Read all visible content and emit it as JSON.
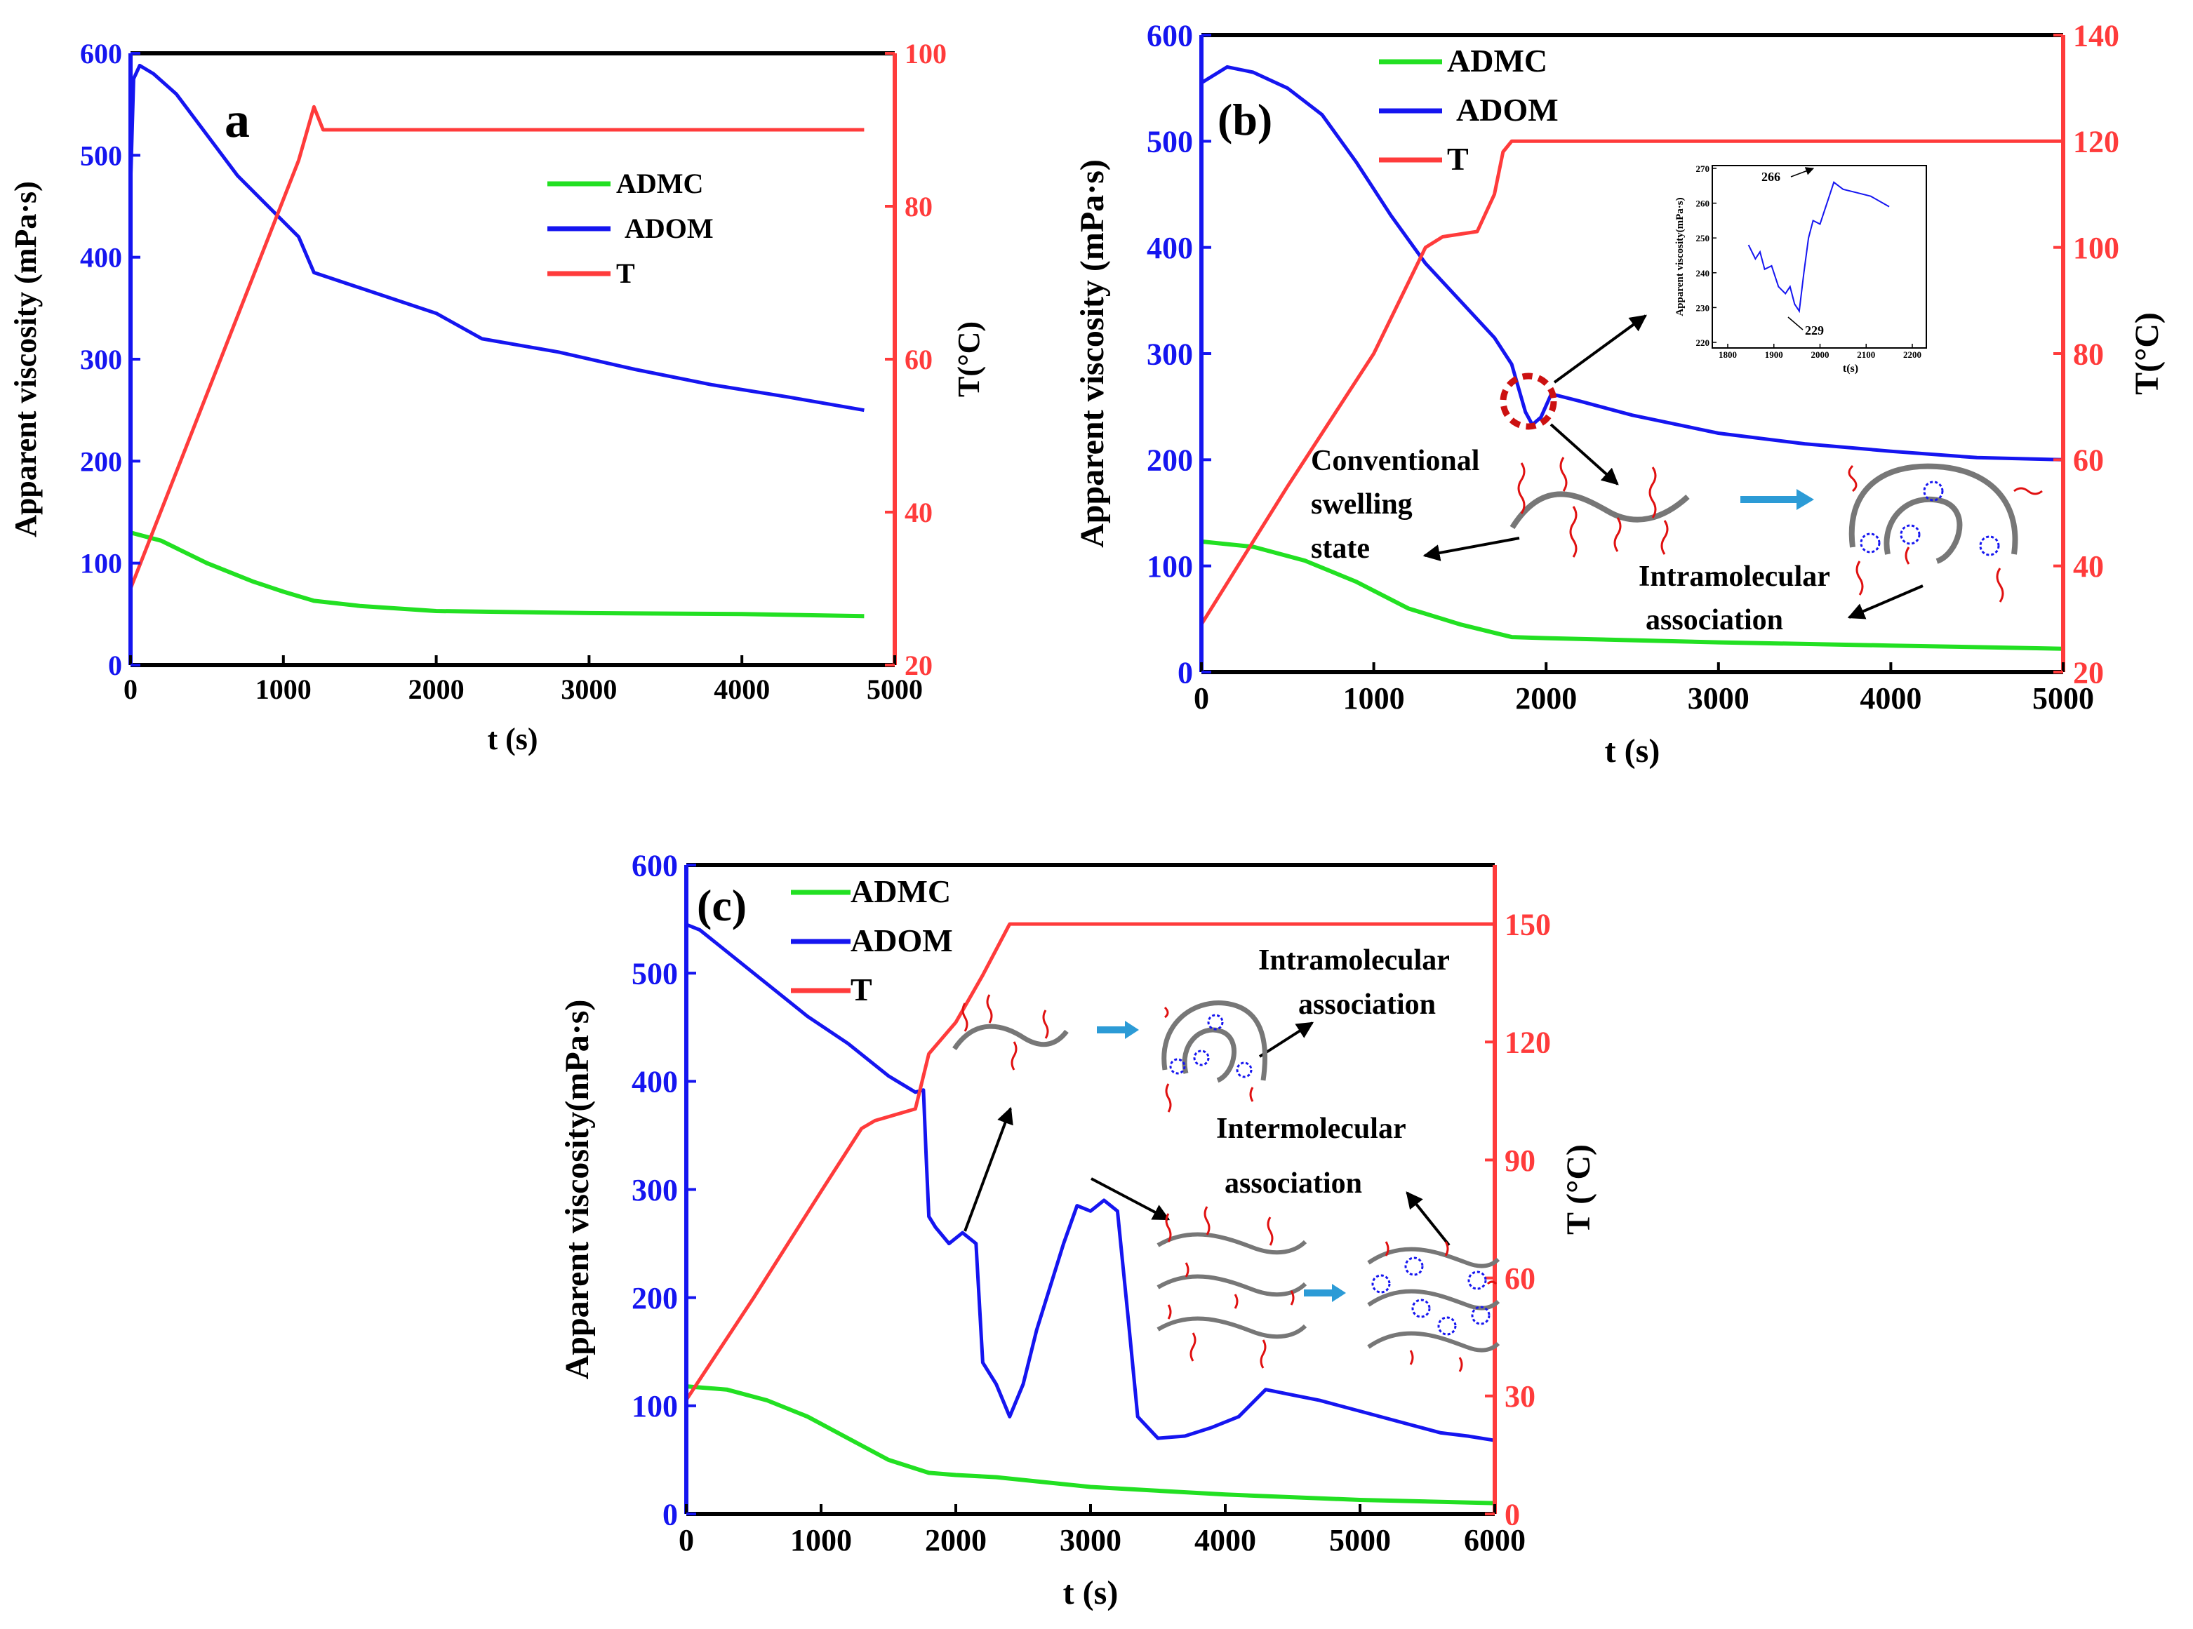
{
  "colors": {
    "admc": "#22e022",
    "adom": "#1515f0",
    "temp": "#ff3b3b",
    "axis": "#000000",
    "annot_ring": "#cc1111",
    "arrow_blue": "#2c9bd6",
    "chain": "#777777",
    "tail": "#e01010"
  },
  "chart_data": [
    {
      "id": "a",
      "type": "line",
      "panel_label": "a",
      "xlabel": "t  (s)",
      "ylabel": "Apparent viscosity (mPa·s)",
      "y2label": "T(°C)",
      "xlim": [
        0,
        5000
      ],
      "ylim": [
        0,
        600
      ],
      "y2lim": [
        20,
        100
      ],
      "xticks": [
        "0",
        "1000",
        "2000",
        "3000",
        "4000",
        "5000"
      ],
      "yticks": [
        "0",
        "100",
        "200",
        "300",
        "400",
        "500",
        "600"
      ],
      "y2ticks": [
        "20",
        "40",
        "60",
        "80",
        "100"
      ],
      "legend": [
        "ADMC",
        "ADOM",
        "T"
      ],
      "legend_position": "top-right",
      "series": [
        {
          "name": "ADMC",
          "axis": "left",
          "points": [
            [
              0,
              130
            ],
            [
              200,
              122
            ],
            [
              500,
              100
            ],
            [
              800,
              82
            ],
            [
              1000,
              72
            ],
            [
              1200,
              63
            ],
            [
              1500,
              58
            ],
            [
              2000,
              53
            ],
            [
              3000,
              51
            ],
            [
              4000,
              50
            ],
            [
              4800,
              48
            ]
          ]
        },
        {
          "name": "ADOM",
          "axis": "left",
          "points": [
            [
              0,
              470
            ],
            [
              20,
              575
            ],
            [
              60,
              588
            ],
            [
              150,
              580
            ],
            [
              300,
              560
            ],
            [
              500,
              520
            ],
            [
              700,
              480
            ],
            [
              900,
              450
            ],
            [
              1100,
              420
            ],
            [
              1200,
              385
            ],
            [
              1500,
              370
            ],
            [
              2000,
              345
            ],
            [
              2300,
              320
            ],
            [
              2800,
              307
            ],
            [
              3300,
              290
            ],
            [
              3800,
              275
            ],
            [
              4300,
              263
            ],
            [
              4800,
              250
            ]
          ]
        },
        {
          "name": "T",
          "axis": "right",
          "points": [
            [
              0,
              30
            ],
            [
              1100,
              86
            ],
            [
              1200,
              93
            ],
            [
              1260,
              90
            ],
            [
              1400,
              90
            ],
            [
              4800,
              90
            ]
          ]
        }
      ]
    },
    {
      "id": "b",
      "type": "line",
      "panel_label": "(b)",
      "xlabel": "t (s)",
      "ylabel": "Apparent viscosity (mPa·s)",
      "y2label": "T(°C)",
      "xlim": [
        0,
        5000
      ],
      "ylim": [
        0,
        600
      ],
      "y2lim": [
        20,
        140
      ],
      "xticks": [
        "0",
        "1000",
        "2000",
        "3000",
        "4000",
        "5000"
      ],
      "yticks": [
        "0",
        "100",
        "200",
        "300",
        "400",
        "500",
        "600"
      ],
      "y2ticks": [
        "20",
        "40",
        "60",
        "80",
        "100",
        "120",
        "140"
      ],
      "legend": [
        "ADMC",
        "ADOM",
        "T"
      ],
      "legend_position": "top-left",
      "series": [
        {
          "name": "ADMC",
          "axis": "left",
          "points": [
            [
              0,
              123
            ],
            [
              300,
              118
            ],
            [
              600,
              105
            ],
            [
              900,
              85
            ],
            [
              1200,
              60
            ],
            [
              1500,
              45
            ],
            [
              1800,
              33
            ],
            [
              2000,
              32
            ],
            [
              3000,
              28
            ],
            [
              4000,
              25
            ],
            [
              5000,
              22
            ]
          ]
        },
        {
          "name": "ADOM",
          "axis": "left",
          "points": [
            [
              0,
              555
            ],
            [
              150,
              570
            ],
            [
              300,
              565
            ],
            [
              500,
              550
            ],
            [
              700,
              525
            ],
            [
              900,
              480
            ],
            [
              1100,
              430
            ],
            [
              1300,
              385
            ],
            [
              1500,
              350
            ],
            [
              1700,
              315
            ],
            [
              1800,
              290
            ],
            [
              1880,
              245
            ],
            [
              1920,
              233
            ],
            [
              1970,
              240
            ],
            [
              2030,
              262
            ],
            [
              2200,
              255
            ],
            [
              2500,
              242
            ],
            [
              3000,
              225
            ],
            [
              3500,
              215
            ],
            [
              4000,
              208
            ],
            [
              4500,
              202
            ],
            [
              5000,
              200
            ]
          ]
        },
        {
          "name": "T",
          "axis": "right",
          "points": [
            [
              0,
              29
            ],
            [
              500,
              55
            ],
            [
              1000,
              80
            ],
            [
              1300,
              100
            ],
            [
              1400,
              102
            ],
            [
              1600,
              103
            ],
            [
              1700,
              110
            ],
            [
              1750,
              118
            ],
            [
              1800,
              120
            ],
            [
              5000,
              120
            ]
          ]
        }
      ],
      "inset": {
        "xlim": [
          1800,
          2200
        ],
        "ylim": [
          220,
          270
        ],
        "xticks": [
          "1800",
          "1900",
          "2000",
          "2100",
          "2200"
        ],
        "yticks": [
          "220",
          "230",
          "240",
          "250",
          "260",
          "270"
        ],
        "xlabel": "t(s)",
        "ylabel": "Apparent viscosity(mPa·s)",
        "points": [
          [
            1845,
            248
          ],
          [
            1860,
            244
          ],
          [
            1870,
            246
          ],
          [
            1880,
            241
          ],
          [
            1895,
            242
          ],
          [
            1910,
            236
          ],
          [
            1925,
            234
          ],
          [
            1935,
            236
          ],
          [
            1945,
            231
          ],
          [
            1955,
            229
          ],
          [
            1965,
            240
          ],
          [
            1975,
            250
          ],
          [
            1985,
            255
          ],
          [
            2000,
            254
          ],
          [
            2010,
            258
          ],
          [
            2020,
            262
          ],
          [
            2030,
            266
          ],
          [
            2050,
            264
          ],
          [
            2080,
            263
          ],
          [
            2110,
            262
          ],
          [
            2150,
            259
          ]
        ],
        "annotations": [
          "266",
          "229"
        ]
      },
      "annotations": [
        "Conventional",
        "swelling",
        "state",
        "Intramolecular",
        "association"
      ]
    },
    {
      "id": "c",
      "type": "line",
      "panel_label": "(c)",
      "xlabel": "t (s)",
      "ylabel": "Apparent viscosity(mPa·s)",
      "y2label": "T (°C)",
      "xlim": [
        0,
        6000
      ],
      "ylim": [
        0,
        600
      ],
      "y2lim": [
        0,
        165
      ],
      "xticks": [
        "0",
        "1000",
        "2000",
        "3000",
        "4000",
        "5000",
        "6000"
      ],
      "yticks": [
        "0",
        "100",
        "200",
        "300",
        "400",
        "500",
        "600"
      ],
      "y2ticks": [
        "0",
        "30",
        "60",
        "90",
        "120",
        "150"
      ],
      "legend": [
        "ADMC",
        "ADOM",
        "T"
      ],
      "legend_position": "top-left",
      "series": [
        {
          "name": "ADMC",
          "axis": "left",
          "points": [
            [
              0,
              118
            ],
            [
              300,
              115
            ],
            [
              600,
              105
            ],
            [
              900,
              90
            ],
            [
              1200,
              70
            ],
            [
              1500,
              50
            ],
            [
              1800,
              38
            ],
            [
              2000,
              36
            ],
            [
              2300,
              34
            ],
            [
              3000,
              25
            ],
            [
              4000,
              18
            ],
            [
              5000,
              13
            ],
            [
              6000,
              10
            ]
          ]
        },
        {
          "name": "ADOM",
          "axis": "left",
          "points": [
            [
              0,
              545
            ],
            [
              100,
              540
            ],
            [
              300,
              520
            ],
            [
              600,
              490
            ],
            [
              900,
              460
            ],
            [
              1200,
              435
            ],
            [
              1500,
              405
            ],
            [
              1700,
              390
            ],
            [
              1760,
              392
            ],
            [
              1780,
              330
            ],
            [
              1800,
              275
            ],
            [
              1850,
              265
            ],
            [
              1950,
              250
            ],
            [
              2050,
              260
            ],
            [
              2150,
              250
            ],
            [
              2200,
              140
            ],
            [
              2300,
              120
            ],
            [
              2400,
              90
            ],
            [
              2500,
              120
            ],
            [
              2600,
              170
            ],
            [
              2700,
              210
            ],
            [
              2800,
              250
            ],
            [
              2900,
              285
            ],
            [
              3000,
              280
            ],
            [
              3100,
              290
            ],
            [
              3200,
              280
            ],
            [
              3280,
              180
            ],
            [
              3350,
              90
            ],
            [
              3500,
              70
            ],
            [
              3700,
              72
            ],
            [
              3900,
              80
            ],
            [
              4100,
              90
            ],
            [
              4300,
              115
            ],
            [
              4500,
              110
            ],
            [
              4700,
              105
            ],
            [
              5000,
              95
            ],
            [
              5300,
              85
            ],
            [
              5600,
              75
            ],
            [
              5800,
              72
            ],
            [
              6000,
              68
            ]
          ]
        },
        {
          "name": "T",
          "axis": "right",
          "points": [
            [
              0,
              29
            ],
            [
              500,
              55
            ],
            [
              1000,
              82
            ],
            [
              1300,
              98
            ],
            [
              1400,
              100
            ],
            [
              1700,
              103
            ],
            [
              1800,
              117
            ],
            [
              2000,
              125
            ],
            [
              2200,
              137
            ],
            [
              2400,
              150
            ],
            [
              6000,
              150
            ]
          ]
        }
      ],
      "annotations": [
        "Intramolecular",
        "association",
        "Intermolecular",
        "association"
      ]
    }
  ]
}
